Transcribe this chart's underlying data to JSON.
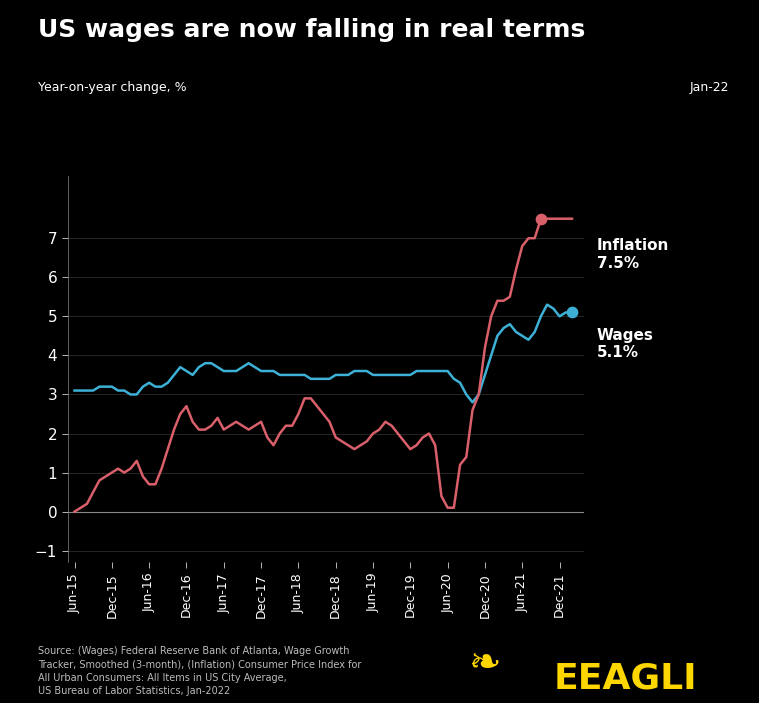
{
  "title": "US wages are now falling in real terms",
  "ylabel": "Year-on-year change, %",
  "jan22_label": "Jan-22",
  "background_color": "#000000",
  "text_color": "#ffffff",
  "inflation_color": "#d9606a",
  "wages_color": "#3db0d6",
  "source_text": "Source: (Wages) Federal Reserve Bank of Atlanta, Wage Growth\nTracker, Smoothed (3-month), (Inflation) Consumer Price Index for\nAll Urban Consumers: All Items in US City Average,\nUS Bureau of Labor Statistics, Jan-2022",
  "eeagli_text": "EEAGLI",
  "inflation_label": "Inflation\n7.5%",
  "wages_label": "Wages\n5.1%",
  "ylim": [
    -1.3,
    8.6
  ],
  "yticks": [
    -1,
    0,
    1,
    2,
    3,
    4,
    5,
    6,
    7
  ],
  "wages_x": [
    0,
    1,
    2,
    3,
    4,
    5,
    6,
    7,
    8,
    9,
    10,
    11,
    12,
    13,
    14,
    15,
    16,
    17,
    18,
    19,
    20,
    21,
    22,
    23,
    24,
    25,
    26,
    27,
    28,
    29,
    30,
    31,
    32,
    33,
    34,
    35,
    36,
    37,
    38,
    39,
    40,
    41,
    42,
    43,
    44,
    45,
    46,
    47,
    48,
    49,
    50,
    51,
    52,
    53,
    54,
    55,
    56,
    57,
    58,
    59,
    60,
    61,
    62,
    63,
    64,
    65,
    66,
    67,
    68,
    69,
    70,
    71,
    72,
    73,
    74,
    75,
    76,
    77,
    78,
    79,
    80
  ],
  "wages_y": [
    3.1,
    3.1,
    3.1,
    3.1,
    3.2,
    3.2,
    3.2,
    3.1,
    3.1,
    3.0,
    3.0,
    3.2,
    3.3,
    3.2,
    3.2,
    3.3,
    3.5,
    3.7,
    3.6,
    3.5,
    3.7,
    3.8,
    3.8,
    3.7,
    3.6,
    3.6,
    3.6,
    3.7,
    3.8,
    3.7,
    3.6,
    3.6,
    3.6,
    3.5,
    3.5,
    3.5,
    3.5,
    3.5,
    3.4,
    3.4,
    3.4,
    3.4,
    3.5,
    3.5,
    3.5,
    3.6,
    3.6,
    3.6,
    3.5,
    3.5,
    3.5,
    3.5,
    3.5,
    3.5,
    3.5,
    3.6,
    3.6,
    3.6,
    3.6,
    3.6,
    3.6,
    3.4,
    3.3,
    3.0,
    2.8,
    3.0,
    3.5,
    4.0,
    4.5,
    4.7,
    4.8,
    4.6,
    4.5,
    4.4,
    4.6,
    5.0,
    5.3,
    5.2,
    5.0,
    5.1,
    5.1
  ],
  "inflation_x": [
    0,
    1,
    2,
    3,
    4,
    5,
    6,
    7,
    8,
    9,
    10,
    11,
    12,
    13,
    14,
    15,
    16,
    17,
    18,
    19,
    20,
    21,
    22,
    23,
    24,
    25,
    26,
    27,
    28,
    29,
    30,
    31,
    32,
    33,
    34,
    35,
    36,
    37,
    38,
    39,
    40,
    41,
    42,
    43,
    44,
    45,
    46,
    47,
    48,
    49,
    50,
    51,
    52,
    53,
    54,
    55,
    56,
    57,
    58,
    59,
    60,
    61,
    62,
    63,
    64,
    65,
    66,
    67,
    68,
    69,
    70,
    71,
    72,
    73,
    74,
    75,
    76,
    77,
    78,
    79,
    80
  ],
  "inflation_y": [
    0.0,
    0.1,
    0.2,
    0.5,
    0.8,
    0.9,
    1.0,
    1.1,
    1.0,
    1.1,
    1.3,
    0.9,
    0.7,
    0.7,
    1.1,
    1.6,
    2.1,
    2.5,
    2.7,
    2.3,
    2.1,
    2.1,
    2.2,
    2.4,
    2.1,
    2.2,
    2.3,
    2.2,
    2.1,
    2.2,
    2.3,
    1.9,
    1.7,
    2.0,
    2.2,
    2.2,
    2.5,
    2.9,
    2.9,
    2.7,
    2.5,
    2.3,
    1.9,
    1.8,
    1.7,
    1.6,
    1.7,
    1.8,
    2.0,
    2.1,
    2.3,
    2.2,
    2.0,
    1.8,
    1.6,
    1.7,
    1.9,
    2.0,
    1.7,
    0.4,
    0.1,
    0.1,
    1.2,
    1.4,
    2.6,
    3.0,
    4.2,
    5.0,
    5.4,
    5.4,
    5.5,
    6.2,
    6.8,
    7.0,
    7.0,
    7.5,
    7.5,
    7.5,
    7.5,
    7.5,
    7.5
  ],
  "xtick_positions": [
    0,
    6,
    12,
    18,
    24,
    30,
    36,
    42,
    48,
    54,
    60,
    66,
    72,
    78
  ],
  "xtick_labels": [
    "Jun-15",
    "Dec-15",
    "Jun-16",
    "Dec-16",
    "Jun-17",
    "Dec-17",
    "Jun-18",
    "Dec-18",
    "Jun-19",
    "Dec-19",
    "Jun-20",
    "Dec-20",
    "Jun-21",
    "Dec-21"
  ],
  "grid_color": "#555555",
  "eeagli_color": "#FFD700"
}
